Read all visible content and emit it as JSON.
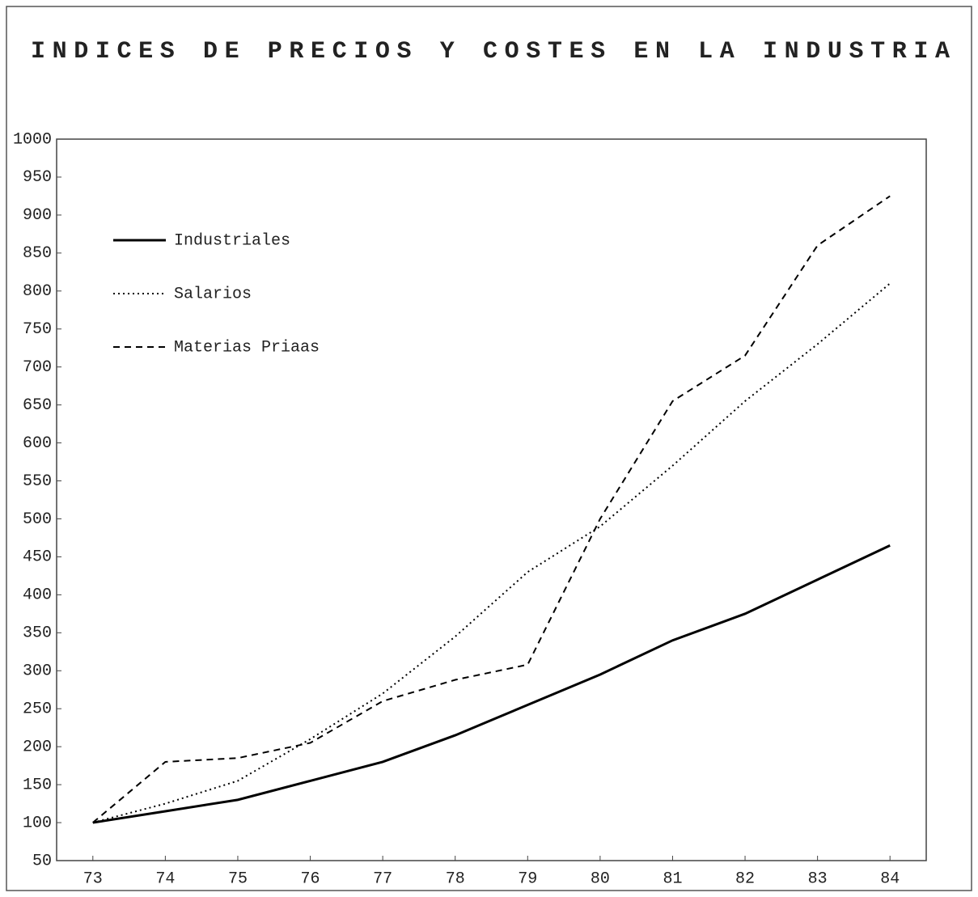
{
  "chart_data": {
    "type": "line",
    "title": "INDICES DE PRECIOS Y COSTES EN LA INDUSTRIA",
    "x": [
      73,
      74,
      75,
      76,
      77,
      78,
      79,
      80,
      81,
      82,
      83,
      84
    ],
    "series": [
      {
        "name": "Industriales",
        "color": "#000000",
        "style": "solid",
        "values": [
          100,
          115,
          130,
          155,
          180,
          215,
          255,
          295,
          340,
          375,
          420,
          465
        ]
      },
      {
        "name": "Salarios",
        "color": "#000000",
        "style": "dotted",
        "values": [
          100,
          125,
          155,
          210,
          270,
          345,
          430,
          490,
          570,
          655,
          730,
          810
        ]
      },
      {
        "name": "Materias Priaas",
        "color": "#000000",
        "style": "dashed",
        "values": [
          100,
          180,
          185,
          205,
          260,
          288,
          308,
          500,
          655,
          715,
          860,
          925
        ]
      }
    ],
    "xlim": [
      72.5,
      84.5
    ],
    "xticks": [
      73,
      74,
      75,
      76,
      77,
      78,
      79,
      80,
      81,
      82,
      83,
      84
    ],
    "ylim": [
      50,
      1000
    ],
    "yticks": [
      50,
      100,
      150,
      200,
      250,
      300,
      350,
      400,
      450,
      500,
      550,
      600,
      650,
      700,
      750,
      800,
      850,
      900,
      950,
      1000
    ],
    "grid": false,
    "legend": "upper left"
  }
}
